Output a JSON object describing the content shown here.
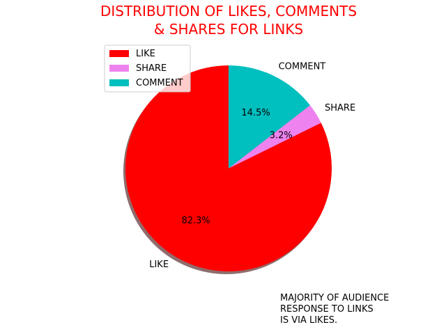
{
  "chart_data": {
    "type": "pie",
    "title_lines": [
      "DISTRIBUTION OF LIKES, COMMENTS",
      "& SHARES FOR LINKS"
    ],
    "title_color": "#ff0000",
    "slices": [
      {
        "label": "LIKE",
        "percent": 82.3,
        "percent_label": "82.3%",
        "color": "#ff0000"
      },
      {
        "label": "SHARE",
        "percent": 3.2,
        "percent_label": "3.2%",
        "color": "#ee82ee"
      },
      {
        "label": "COMMENT",
        "percent": 14.5,
        "percent_label": "14.5%",
        "color": "#00bfbf"
      }
    ],
    "start_angle_deg": 90,
    "shadow": true,
    "legend": {
      "placement": "upper-left",
      "entries": [
        {
          "label": "LIKE",
          "color": "#ff0000"
        },
        {
          "label": "SHARE",
          "color": "#ee82ee"
        },
        {
          "label": "COMMENT",
          "color": "#00bfbf"
        }
      ]
    },
    "annotation_lines": [
      "MAJORITY OF AUDIENCE",
      "RESPONSE TO LINKS",
      "IS VIA LIKES."
    ]
  }
}
